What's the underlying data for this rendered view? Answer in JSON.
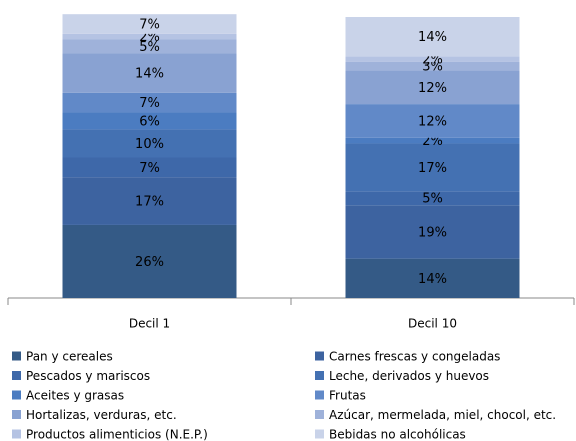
{
  "chart_data": {
    "type": "stacked_bar",
    "categories": [
      "Decil 1",
      "Decil 10"
    ],
    "ylim": [
      0,
      100
    ],
    "legend": "bottom",
    "series": [
      {
        "name": "Pan y cereales",
        "color": "#345a86",
        "values": [
          26,
          14
        ],
        "value_labels": [
          "26%",
          "14%"
        ]
      },
      {
        "name": "Carnes frescas y congeladas",
        "color": "#3d63a0",
        "values": [
          17,
          19
        ],
        "value_labels": [
          "17%",
          "19%"
        ]
      },
      {
        "name": "Pescados y mariscos",
        "color": "#3e68a9",
        "values": [
          7,
          5
        ],
        "value_labels": [
          "7%",
          "5%"
        ]
      },
      {
        "name": "Leche, derivados y huevos",
        "color": "#4471b2",
        "values": [
          10,
          17
        ],
        "value_labels": [
          "10%",
          "17%"
        ]
      },
      {
        "name": "Aceites y grasas",
        "color": "#4b7cc1",
        "values": [
          6,
          2
        ],
        "value_labels": [
          "6%",
          "2%"
        ]
      },
      {
        "name": "Frutas",
        "color": "#6189c8",
        "values": [
          7,
          12
        ],
        "value_labels": [
          "7%",
          "12%"
        ]
      },
      {
        "name": "Hortalizas, verduras, etc.",
        "color": "#89a2d2",
        "values": [
          14,
          12
        ],
        "value_labels": [
          "14%",
          "12%"
        ]
      },
      {
        "name": "Azúcar, mermelada, miel, chocol, etc.",
        "color": "#9fb2da",
        "values": [
          5,
          3
        ],
        "value_labels": [
          "5%",
          "3%"
        ]
      },
      {
        "name": "Productos alimenticios (N.E.P.)",
        "color": "#b5c3e3",
        "values": [
          2,
          2
        ],
        "value_labels": [
          "2%",
          "2%"
        ]
      },
      {
        "name": "Bebidas no alcohólicas",
        "color": "#c9d3e9",
        "values": [
          7,
          14
        ],
        "value_labels": [
          "7%",
          "14%"
        ]
      }
    ]
  }
}
